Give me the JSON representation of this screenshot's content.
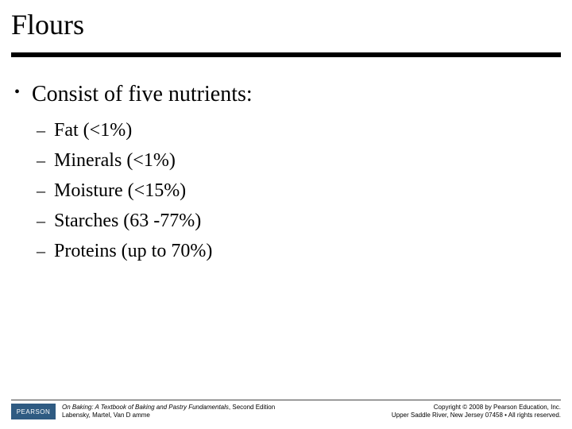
{
  "title": "Flours",
  "bullet": "Consist of five nutrients:",
  "subitems": [
    "Fat (<1%)",
    "Minerals (<1%)",
    "Moisture (<15%)",
    "Starches (63 -77%)",
    "Proteins (up to 70%)"
  ],
  "logo_text": "PEARSON",
  "logo_bg": "#2f5b82",
  "source_book": "On Baking: A Textbook of Baking and Pastry Fundamentals",
  "source_edition": ", Second Edition",
  "source_authors": "Labensky, Martel, Van D amme",
  "copyright_line1": "Copyright © 2008 by Pearson Education, Inc.",
  "copyright_line2": "Upper Saddle River, New Jersey 07458 • All rights reserved.",
  "underline_color": "#000000",
  "title_fontsize": 36,
  "bullet_fontsize": 28,
  "sub_fontsize": 24,
  "footer_fontsize": 8,
  "background_color": "#ffffff"
}
